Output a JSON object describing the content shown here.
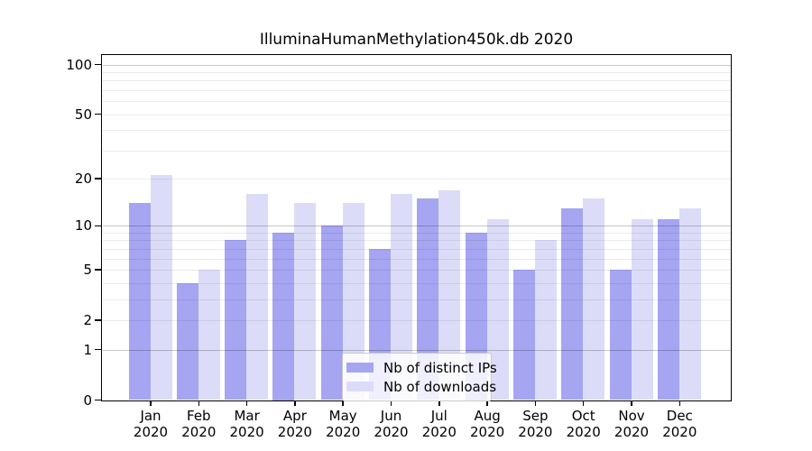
{
  "title": "IlluminaHumanMethylation450k.db 2020",
  "colors": {
    "distinct_ips_bar": "#a5a5f2",
    "downloads_bar": "#dcdcf8",
    "grid_major": "rgba(0,0,0,0.22)",
    "grid_minor": "rgba(0,0,0,0.08)",
    "axis": "#000000"
  },
  "chart_data": {
    "type": "bar",
    "title": "IlluminaHumanMethylation450k.db 2020",
    "categories": [
      "Jan",
      "Feb",
      "Mar",
      "Apr",
      "May",
      "Jun",
      "Jul",
      "Aug",
      "Sep",
      "Oct",
      "Nov",
      "Dec"
    ],
    "category_year": "2020",
    "series": [
      {
        "name": "Nb of distinct IPs",
        "color": "#a5a5f2",
        "values": [
          14,
          4,
          8,
          9,
          10,
          7,
          15,
          9,
          5,
          13,
          5,
          11
        ]
      },
      {
        "name": "Nb of downloads",
        "color": "#dcdcf8",
        "values": [
          21,
          5,
          16,
          14,
          14,
          16,
          17,
          11,
          8,
          15,
          11,
          13
        ]
      }
    ],
    "xlabel": "",
    "ylabel": "",
    "yscale": "log1p",
    "ylim": [
      0,
      113
    ],
    "y_ticks": [
      0,
      1,
      2,
      5,
      10,
      20,
      50,
      100
    ],
    "grid": true,
    "gridlines_major": [
      1,
      10,
      100
    ],
    "gridlines_minor": [
      2,
      3,
      4,
      5,
      6,
      7,
      8,
      9,
      20,
      30,
      40,
      50,
      60,
      70,
      80,
      90
    ],
    "legend_position": "bottom-center"
  }
}
